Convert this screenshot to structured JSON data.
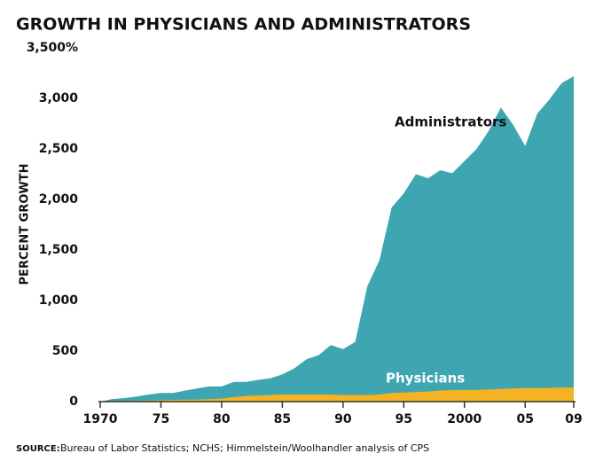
{
  "chart_data": {
    "type": "area",
    "title": "GROWTH IN PHYSICIANS AND ADMINISTRATORS",
    "y_label": "PERCENT GROWTH",
    "source": {
      "label": "SOURCE:",
      "text": "Bureau of Labor Statistics; NCHS; Himmelstein/Woolhandler analysis of CPS"
    },
    "x": [
      1970,
      1971,
      1972,
      1973,
      1974,
      1975,
      1976,
      1977,
      1978,
      1979,
      1980,
      1981,
      1982,
      1983,
      1984,
      1985,
      1986,
      1987,
      1988,
      1989,
      1990,
      1991,
      1992,
      1993,
      1994,
      1995,
      1996,
      1997,
      1998,
      1999,
      2000,
      2001,
      2002,
      2003,
      2004,
      2005,
      2006,
      2007,
      2008,
      2009
    ],
    "series": [
      {
        "name": "Administrators",
        "color": "#3ea6b0",
        "values": [
          0,
          25,
          35,
          50,
          70,
          85,
          85,
          110,
          130,
          150,
          150,
          195,
          195,
          215,
          230,
          270,
          330,
          420,
          460,
          560,
          520,
          590,
          1140,
          1400,
          1920,
          2060,
          2250,
          2210,
          2290,
          2260,
          2380,
          2500,
          2680,
          2910,
          2740,
          2530,
          2850,
          2990,
          3150,
          3220
        ]
      },
      {
        "name": "Physicians",
        "color": "#f5b222",
        "values": [
          0,
          5,
          8,
          10,
          12,
          15,
          18,
          20,
          20,
          25,
          30,
          45,
          55,
          60,
          65,
          70,
          70,
          70,
          70,
          70,
          65,
          65,
          65,
          70,
          85,
          90,
          95,
          100,
          110,
          115,
          115,
          115,
          120,
          125,
          130,
          135,
          135,
          135,
          140,
          140
        ]
      }
    ],
    "xlim": [
      1970,
      2009
    ],
    "xticks": [
      {
        "value": 1970,
        "label": "1970"
      },
      {
        "value": 1975,
        "label": "75"
      },
      {
        "value": 1980,
        "label": "80"
      },
      {
        "value": 1985,
        "label": "85"
      },
      {
        "value": 1990,
        "label": "90"
      },
      {
        "value": 1995,
        "label": "95"
      },
      {
        "value": 2000,
        "label": "2000"
      },
      {
        "value": 2005,
        "label": "05"
      },
      {
        "value": 2009,
        "label": "09"
      }
    ],
    "ylim": [
      0,
      3500
    ],
    "yticks": [
      0,
      500,
      {
        "value": 1000,
        "label": "1,000"
      },
      {
        "value": 1500,
        "label": "1,500"
      },
      {
        "value": 2000,
        "label": "2,000"
      },
      {
        "value": 2500,
        "label": "2,500"
      },
      {
        "value": 3000,
        "label": "3,000"
      },
      {
        "value": 3500,
        "label": "3,500%"
      }
    ]
  }
}
